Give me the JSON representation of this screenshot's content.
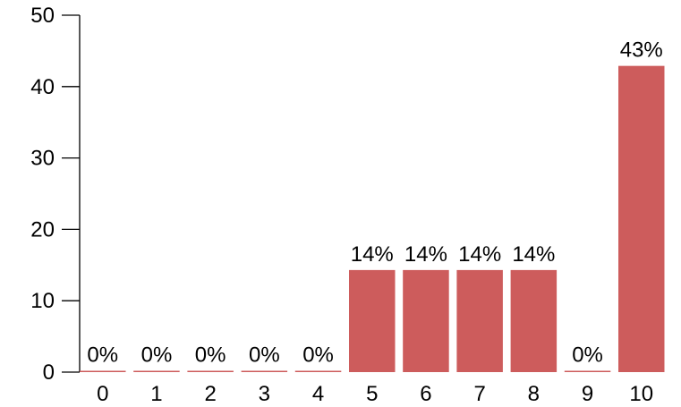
{
  "chart_data": {
    "type": "bar",
    "title": "",
    "xlabel": "",
    "ylabel": "",
    "categories": [
      "0",
      "1",
      "2",
      "3",
      "4",
      "5",
      "6",
      "7",
      "8",
      "9",
      "10"
    ],
    "values": [
      0,
      0,
      0,
      0,
      0,
      14.3,
      14.3,
      14.3,
      14.3,
      0,
      42.9
    ],
    "data_labels": [
      "0%",
      "0%",
      "0%",
      "0%",
      "0%",
      "14%",
      "14%",
      "14%",
      "14%",
      "0%",
      "43%"
    ],
    "ylim": [
      0,
      50
    ],
    "yticks": [
      "0",
      "10",
      "20",
      "30",
      "40",
      "50"
    ],
    "ytick_values": [
      0,
      10,
      20,
      30,
      40,
      50
    ],
    "bar_color": "#cd5c5c",
    "grid": false,
    "legend": "none"
  }
}
